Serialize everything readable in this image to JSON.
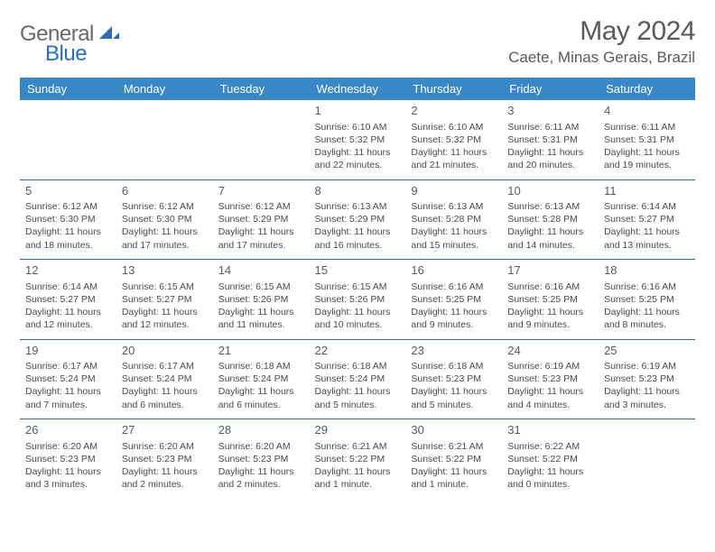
{
  "brand": {
    "part1": "General",
    "part2": "Blue"
  },
  "title": "May 2024",
  "location": "Caete, Minas Gerais, Brazil",
  "colors": {
    "header_bg": "#3a87c8",
    "header_text": "#ffffff",
    "rule": "#2d6aa3",
    "body_text": "#4a4a4a",
    "title_text": "#5a5a5a",
    "logo_gray": "#6a6a6a",
    "logo_blue": "#2a6fb5",
    "page_bg": "#ffffff"
  },
  "typography": {
    "title_fontsize": 30,
    "location_fontsize": 17,
    "header_fontsize": 13,
    "daynum_fontsize": 13,
    "cell_fontsize": 10.5
  },
  "layout": {
    "columns": 7,
    "rows": 5,
    "first_day_column_index": 3
  },
  "weekdays": [
    "Sunday",
    "Monday",
    "Tuesday",
    "Wednesday",
    "Thursday",
    "Friday",
    "Saturday"
  ],
  "days": [
    {
      "n": 1,
      "sr": "6:10 AM",
      "ss": "5:32 PM",
      "dl": "11 hours and 22 minutes."
    },
    {
      "n": 2,
      "sr": "6:10 AM",
      "ss": "5:32 PM",
      "dl": "11 hours and 21 minutes."
    },
    {
      "n": 3,
      "sr": "6:11 AM",
      "ss": "5:31 PM",
      "dl": "11 hours and 20 minutes."
    },
    {
      "n": 4,
      "sr": "6:11 AM",
      "ss": "5:31 PM",
      "dl": "11 hours and 19 minutes."
    },
    {
      "n": 5,
      "sr": "6:12 AM",
      "ss": "5:30 PM",
      "dl": "11 hours and 18 minutes."
    },
    {
      "n": 6,
      "sr": "6:12 AM",
      "ss": "5:30 PM",
      "dl": "11 hours and 17 minutes."
    },
    {
      "n": 7,
      "sr": "6:12 AM",
      "ss": "5:29 PM",
      "dl": "11 hours and 17 minutes."
    },
    {
      "n": 8,
      "sr": "6:13 AM",
      "ss": "5:29 PM",
      "dl": "11 hours and 16 minutes."
    },
    {
      "n": 9,
      "sr": "6:13 AM",
      "ss": "5:28 PM",
      "dl": "11 hours and 15 minutes."
    },
    {
      "n": 10,
      "sr": "6:13 AM",
      "ss": "5:28 PM",
      "dl": "11 hours and 14 minutes."
    },
    {
      "n": 11,
      "sr": "6:14 AM",
      "ss": "5:27 PM",
      "dl": "11 hours and 13 minutes."
    },
    {
      "n": 12,
      "sr": "6:14 AM",
      "ss": "5:27 PM",
      "dl": "11 hours and 12 minutes."
    },
    {
      "n": 13,
      "sr": "6:15 AM",
      "ss": "5:27 PM",
      "dl": "11 hours and 12 minutes."
    },
    {
      "n": 14,
      "sr": "6:15 AM",
      "ss": "5:26 PM",
      "dl": "11 hours and 11 minutes."
    },
    {
      "n": 15,
      "sr": "6:15 AM",
      "ss": "5:26 PM",
      "dl": "11 hours and 10 minutes."
    },
    {
      "n": 16,
      "sr": "6:16 AM",
      "ss": "5:25 PM",
      "dl": "11 hours and 9 minutes."
    },
    {
      "n": 17,
      "sr": "6:16 AM",
      "ss": "5:25 PM",
      "dl": "11 hours and 9 minutes."
    },
    {
      "n": 18,
      "sr": "6:16 AM",
      "ss": "5:25 PM",
      "dl": "11 hours and 8 minutes."
    },
    {
      "n": 19,
      "sr": "6:17 AM",
      "ss": "5:24 PM",
      "dl": "11 hours and 7 minutes."
    },
    {
      "n": 20,
      "sr": "6:17 AM",
      "ss": "5:24 PM",
      "dl": "11 hours and 6 minutes."
    },
    {
      "n": 21,
      "sr": "6:18 AM",
      "ss": "5:24 PM",
      "dl": "11 hours and 6 minutes."
    },
    {
      "n": 22,
      "sr": "6:18 AM",
      "ss": "5:24 PM",
      "dl": "11 hours and 5 minutes."
    },
    {
      "n": 23,
      "sr": "6:18 AM",
      "ss": "5:23 PM",
      "dl": "11 hours and 5 minutes."
    },
    {
      "n": 24,
      "sr": "6:19 AM",
      "ss": "5:23 PM",
      "dl": "11 hours and 4 minutes."
    },
    {
      "n": 25,
      "sr": "6:19 AM",
      "ss": "5:23 PM",
      "dl": "11 hours and 3 minutes."
    },
    {
      "n": 26,
      "sr": "6:20 AM",
      "ss": "5:23 PM",
      "dl": "11 hours and 3 minutes."
    },
    {
      "n": 27,
      "sr": "6:20 AM",
      "ss": "5:23 PM",
      "dl": "11 hours and 2 minutes."
    },
    {
      "n": 28,
      "sr": "6:20 AM",
      "ss": "5:23 PM",
      "dl": "11 hours and 2 minutes."
    },
    {
      "n": 29,
      "sr": "6:21 AM",
      "ss": "5:22 PM",
      "dl": "11 hours and 1 minute."
    },
    {
      "n": 30,
      "sr": "6:21 AM",
      "ss": "5:22 PM",
      "dl": "11 hours and 1 minute."
    },
    {
      "n": 31,
      "sr": "6:22 AM",
      "ss": "5:22 PM",
      "dl": "11 hours and 0 minutes."
    }
  ],
  "labels": {
    "sunrise": "Sunrise:",
    "sunset": "Sunset:",
    "daylight": "Daylight:"
  }
}
